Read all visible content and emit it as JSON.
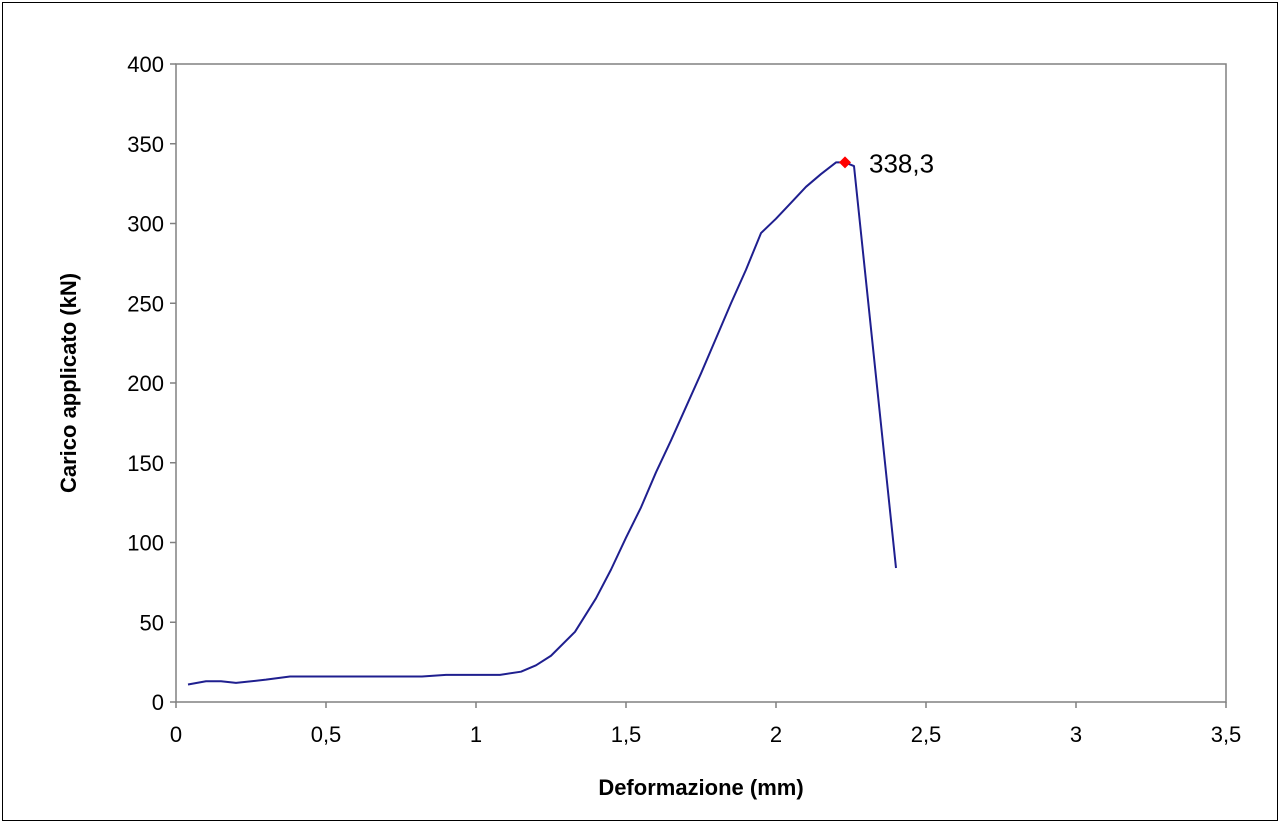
{
  "chart_data": {
    "type": "line",
    "title": "",
    "xlabel": "Deformazione (mm)",
    "ylabel": "Carico applicato (kN)",
    "xlim": [
      0,
      3.5
    ],
    "ylim": [
      0,
      400
    ],
    "x_ticks": [
      "0",
      "0,5",
      "1",
      "1,5",
      "2",
      "2,5",
      "3",
      "3,5"
    ],
    "x_tick_values": [
      0,
      0.5,
      1,
      1.5,
      2,
      2.5,
      3,
      3.5
    ],
    "y_ticks": [
      "0",
      "50",
      "100",
      "150",
      "200",
      "250",
      "300",
      "350",
      "400"
    ],
    "y_tick_values": [
      0,
      50,
      100,
      150,
      200,
      250,
      300,
      350,
      400
    ],
    "grid": false,
    "legend": "none",
    "series": [
      {
        "color": "#1f1f8f",
        "x": [
          0.04,
          0.1,
          0.15,
          0.2,
          0.3,
          0.38,
          0.5,
          0.6,
          0.7,
          0.82,
          0.9,
          0.96,
          1.0,
          1.08,
          1.15,
          1.2,
          1.25,
          1.33,
          1.4,
          1.45,
          1.5,
          1.55,
          1.6,
          1.65,
          1.7,
          1.75,
          1.8,
          1.85,
          1.9,
          1.95,
          2.0,
          2.05,
          2.1,
          2.15,
          2.2,
          2.23,
          2.26,
          2.4
        ],
        "y": [
          11,
          13,
          13,
          12,
          14,
          16,
          16,
          16,
          16,
          16,
          17,
          17,
          17,
          17,
          19,
          23,
          29,
          44,
          65,
          83,
          103,
          122,
          144,
          164,
          185,
          206,
          228,
          250,
          271,
          294,
          303,
          313,
          323,
          331,
          338.3,
          338.3,
          336,
          84
        ]
      }
    ],
    "highlight": {
      "x": 2.23,
      "y": 338.3,
      "label": "338,3",
      "color": "#ff0000"
    }
  }
}
